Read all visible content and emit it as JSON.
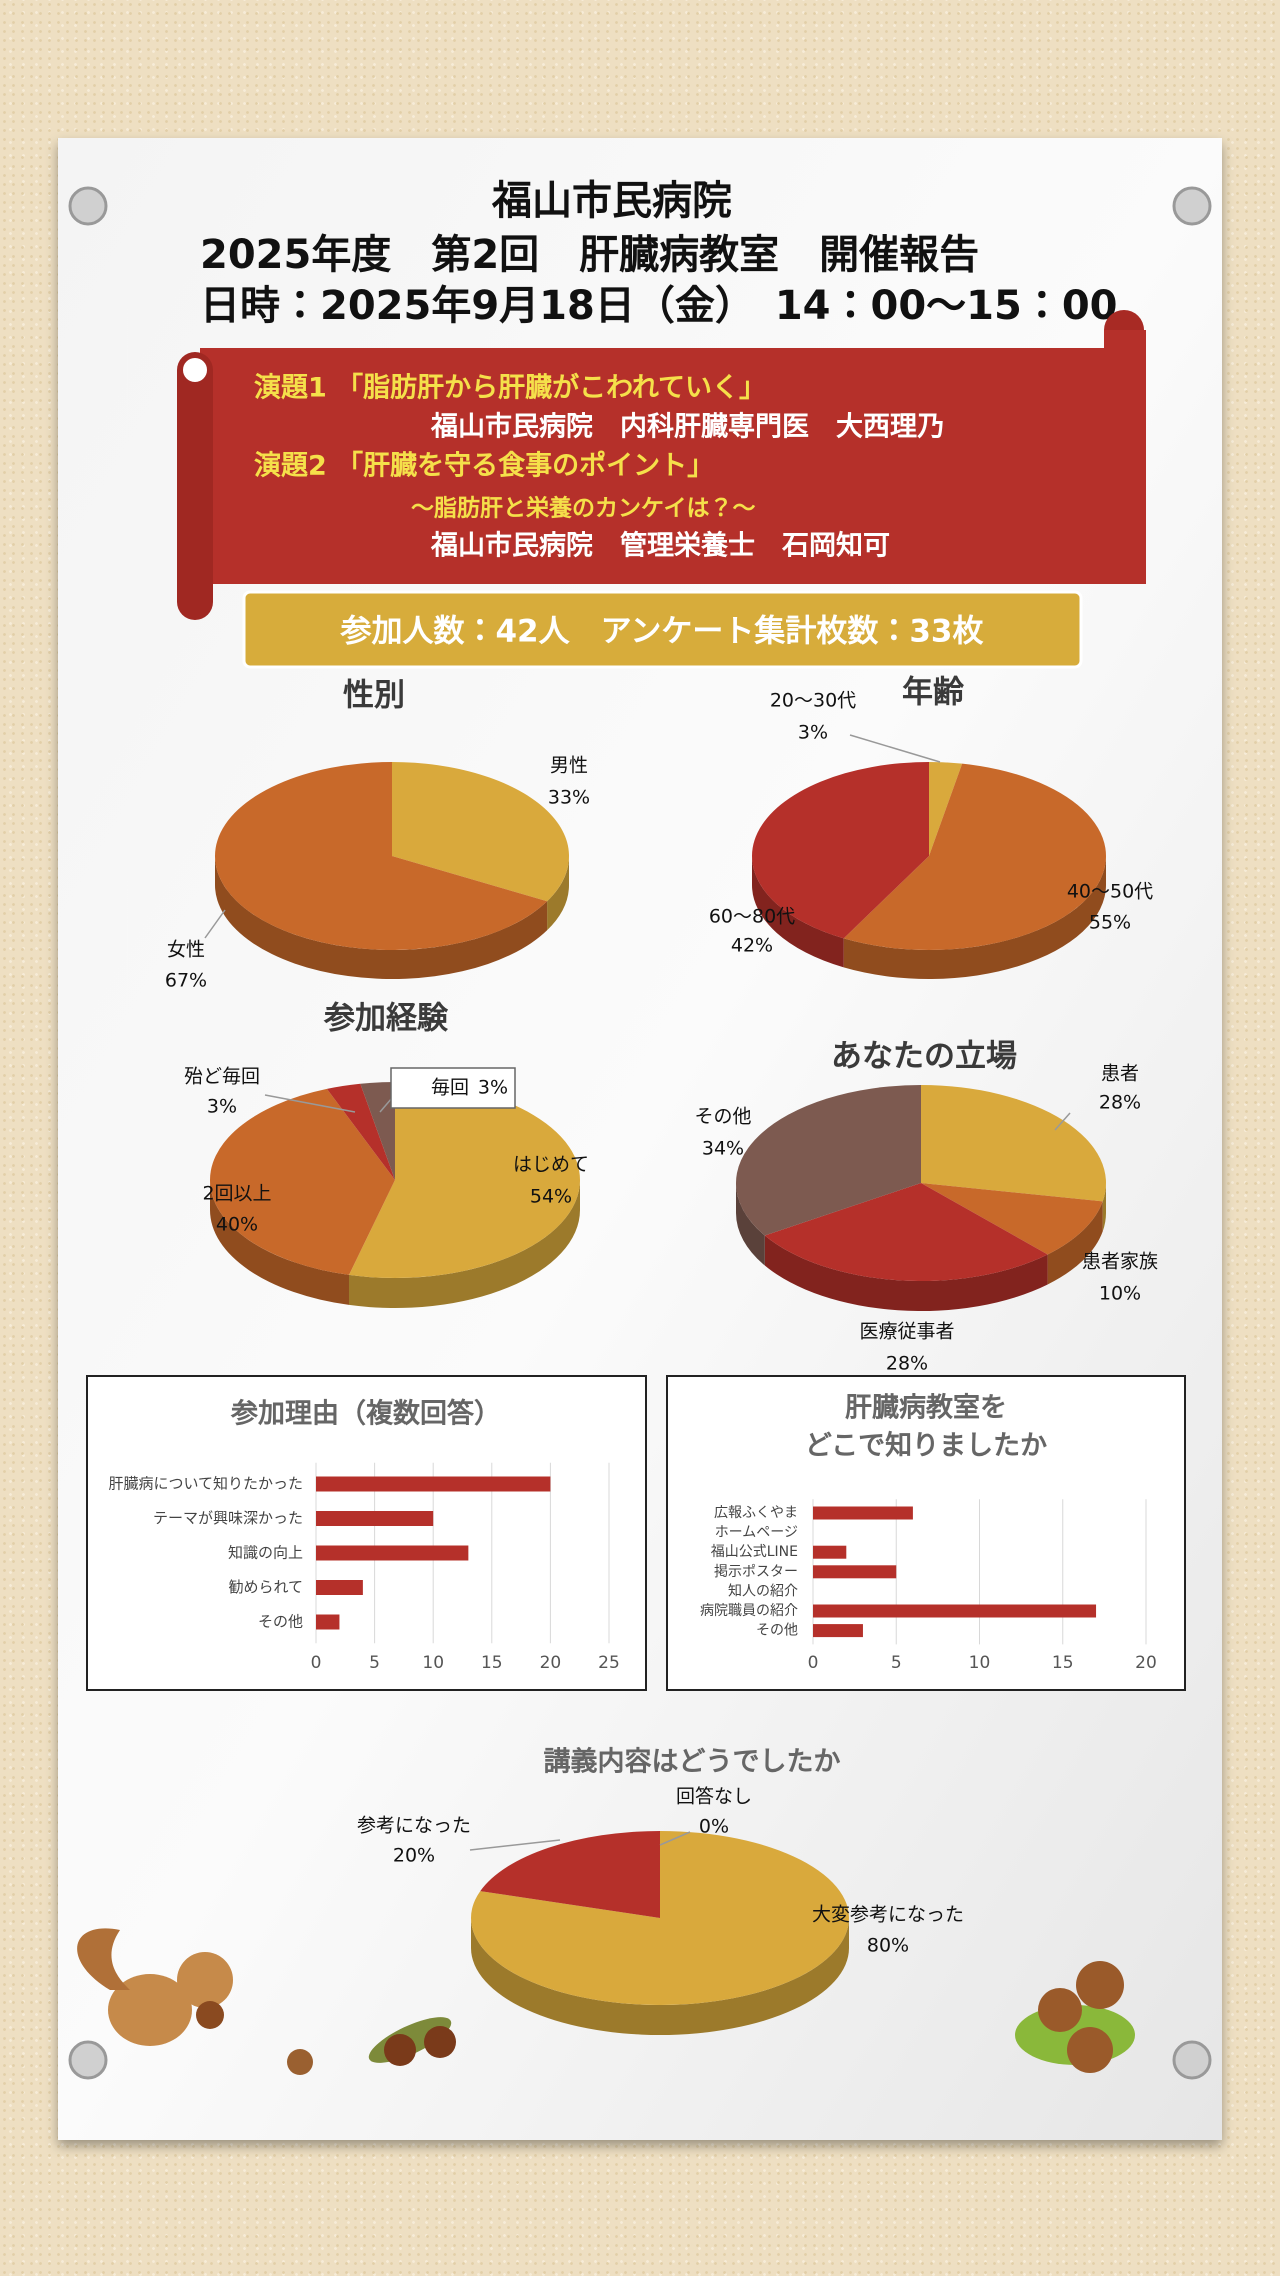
{
  "header": {
    "hospital": "福山市民病院",
    "event": "2025年度　第2回　肝臓病教室　開催報告",
    "datetime": "日時：2025年9月18日（金）　14：00～15：00"
  },
  "banner": {
    "lines": [
      "演題1 「脂肪肝から肝臓がこわれていく」",
      "福山市民病院　内科肝臓専門医　大西理乃",
      "演題2 「肝臓を守る食事のポイント」",
      "～脂肪肝と栄養のカンケイは？～",
      "福山市民病院　管理栄養士　石岡知可"
    ]
  },
  "summary": "参加人数：42人　アンケート集計枚数：33枚",
  "chart_data": [
    {
      "type": "pie",
      "title": "性別",
      "categories": [
        "男性",
        "女性"
      ],
      "values": [
        33,
        67
      ],
      "value_labels": [
        "33%",
        "67%"
      ],
      "colors": [
        "#d9a93c",
        "#c8692a"
      ]
    },
    {
      "type": "pie",
      "title": "年齢",
      "categories": [
        "20～30代",
        "40～50代",
        "60～80代"
      ],
      "values": [
        3,
        55,
        42
      ],
      "value_labels": [
        "3%",
        "55%",
        "42%"
      ],
      "colors": [
        "#d9a93c",
        "#c8692a",
        "#b5302a"
      ]
    },
    {
      "type": "pie",
      "title": "参加経験",
      "categories": [
        "はじめて",
        "2回以上",
        "殆ど毎回",
        "毎回"
      ],
      "values": [
        54,
        40,
        3,
        3
      ],
      "value_labels": [
        "54%",
        "40%",
        "3%",
        "3%"
      ],
      "colors": [
        "#d9a93c",
        "#c8692a",
        "#b5302a",
        "#7d5a50"
      ]
    },
    {
      "type": "pie",
      "title": "あなたの立場",
      "categories": [
        "患者",
        "患者家族",
        "医療従事者",
        "その他"
      ],
      "values": [
        28,
        10,
        28,
        34
      ],
      "value_labels": [
        "28%",
        "10%",
        "28%",
        "34%"
      ],
      "colors": [
        "#d9a93c",
        "#c8692a",
        "#b5302a",
        "#7d5a50"
      ]
    },
    {
      "type": "bar",
      "orientation": "horizontal",
      "title": "参加理由（複数回答）",
      "categories": [
        "肝臓病について知りたかった",
        "テーマが興味深かった",
        "知識の向上",
        "勧められて",
        "その他"
      ],
      "values": [
        20,
        10,
        13,
        4,
        2
      ],
      "color": "#b5302a",
      "xlim": [
        0,
        25
      ],
      "xticks": [
        0,
        5,
        10,
        15,
        20,
        25
      ],
      "grid": true
    },
    {
      "type": "bar",
      "orientation": "horizontal",
      "title": [
        "肝臓病教室を",
        "どこで知りましたか"
      ],
      "categories": [
        "広報ふくやま",
        "ホームページ",
        "福山公式LINE",
        "掲示ポスター",
        "知人の紹介",
        "病院職員の紹介",
        "その他"
      ],
      "values": [
        6,
        0,
        2,
        5,
        0,
        17,
        3
      ],
      "color": "#b5302a",
      "xlim": [
        0,
        20
      ],
      "xticks": [
        0,
        5,
        10,
        15,
        20
      ],
      "grid": true
    },
    {
      "type": "pie",
      "title": "講義内容はどうでしたか",
      "categories": [
        "大変参考になった",
        "参考になった",
        "回答なし"
      ],
      "values": [
        80,
        20,
        0
      ],
      "value_labels": [
        "80%",
        "20%",
        "0%"
      ],
      "colors": [
        "#d9a93c",
        "#b5302a",
        "#7d5a50"
      ]
    }
  ]
}
